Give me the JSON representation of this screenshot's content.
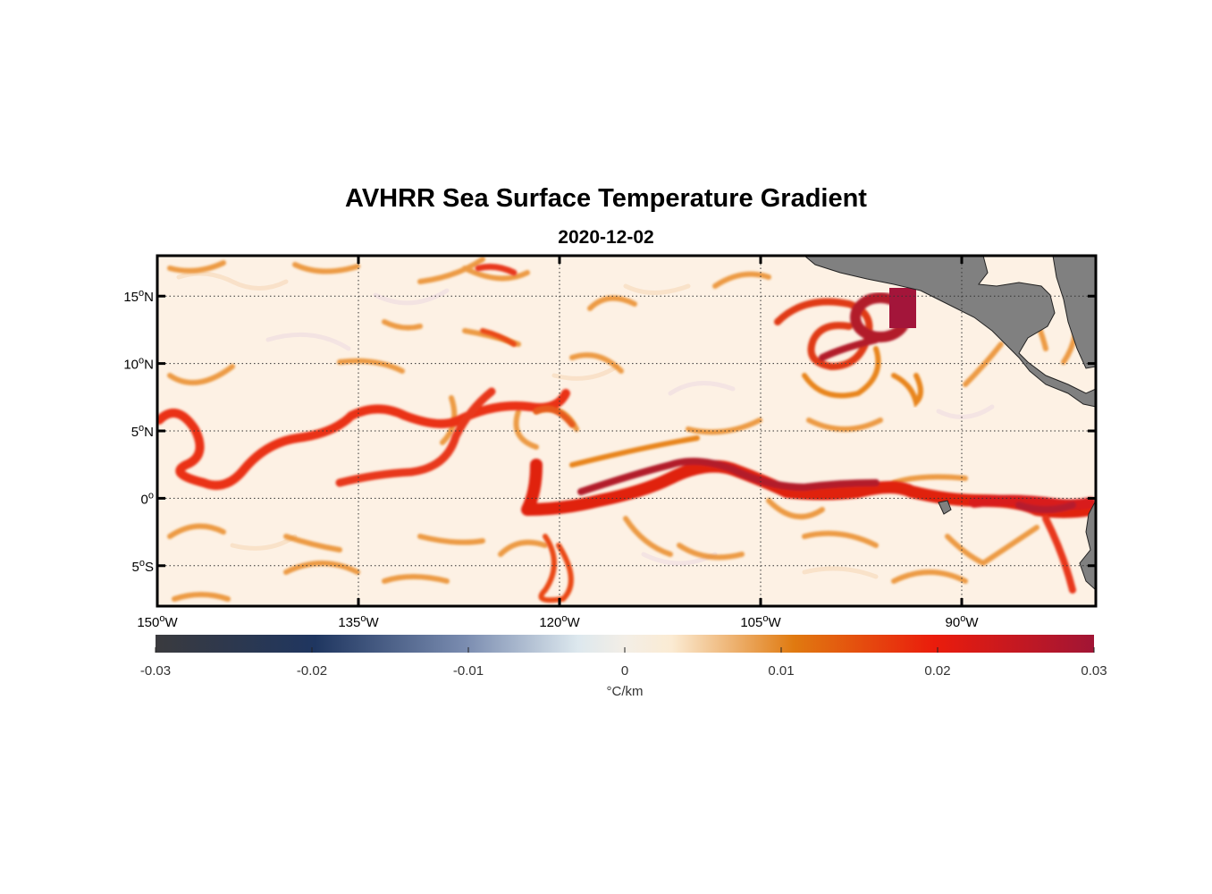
{
  "title": "AVHRR Sea Surface Temperature Gradient",
  "subtitle": "2020-12-02",
  "map": {
    "lon_range": [
      -150,
      -80
    ],
    "lat_range": [
      -8,
      18
    ],
    "grid": "dotted",
    "lat_ticks": [
      {
        "value": 15,
        "label": "15",
        "hemi": "N"
      },
      {
        "value": 10,
        "label": "10",
        "hemi": "N"
      },
      {
        "value": 5,
        "label": "5",
        "hemi": "N"
      },
      {
        "value": 0,
        "label": "0",
        "hemi": ""
      },
      {
        "value": -5,
        "label": "5",
        "hemi": "S"
      }
    ],
    "lon_ticks": [
      {
        "value": -150,
        "label": "150",
        "hemi": "W"
      },
      {
        "value": -135,
        "label": "135",
        "hemi": "W"
      },
      {
        "value": -120,
        "label": "120",
        "hemi": "W"
      },
      {
        "value": -105,
        "label": "105",
        "hemi": "W"
      },
      {
        "value": -90,
        "label": "90",
        "hemi": "W"
      }
    ],
    "land_color": "#808080",
    "ocean_background": "#fdf1e4"
  },
  "colorbar": {
    "min": -0.03,
    "max": 0.03,
    "ticks": [
      "-0.03",
      "-0.02",
      "-0.01",
      "0",
      "0.01",
      "0.02",
      "0.03"
    ],
    "unit": "°C/km",
    "colors": [
      "#3a3a3e",
      "#1f3660",
      "#7a8cb0",
      "#dde8ee",
      "#fbebd3",
      "#e07a10",
      "#ea1c0c",
      "#a11535"
    ]
  }
}
